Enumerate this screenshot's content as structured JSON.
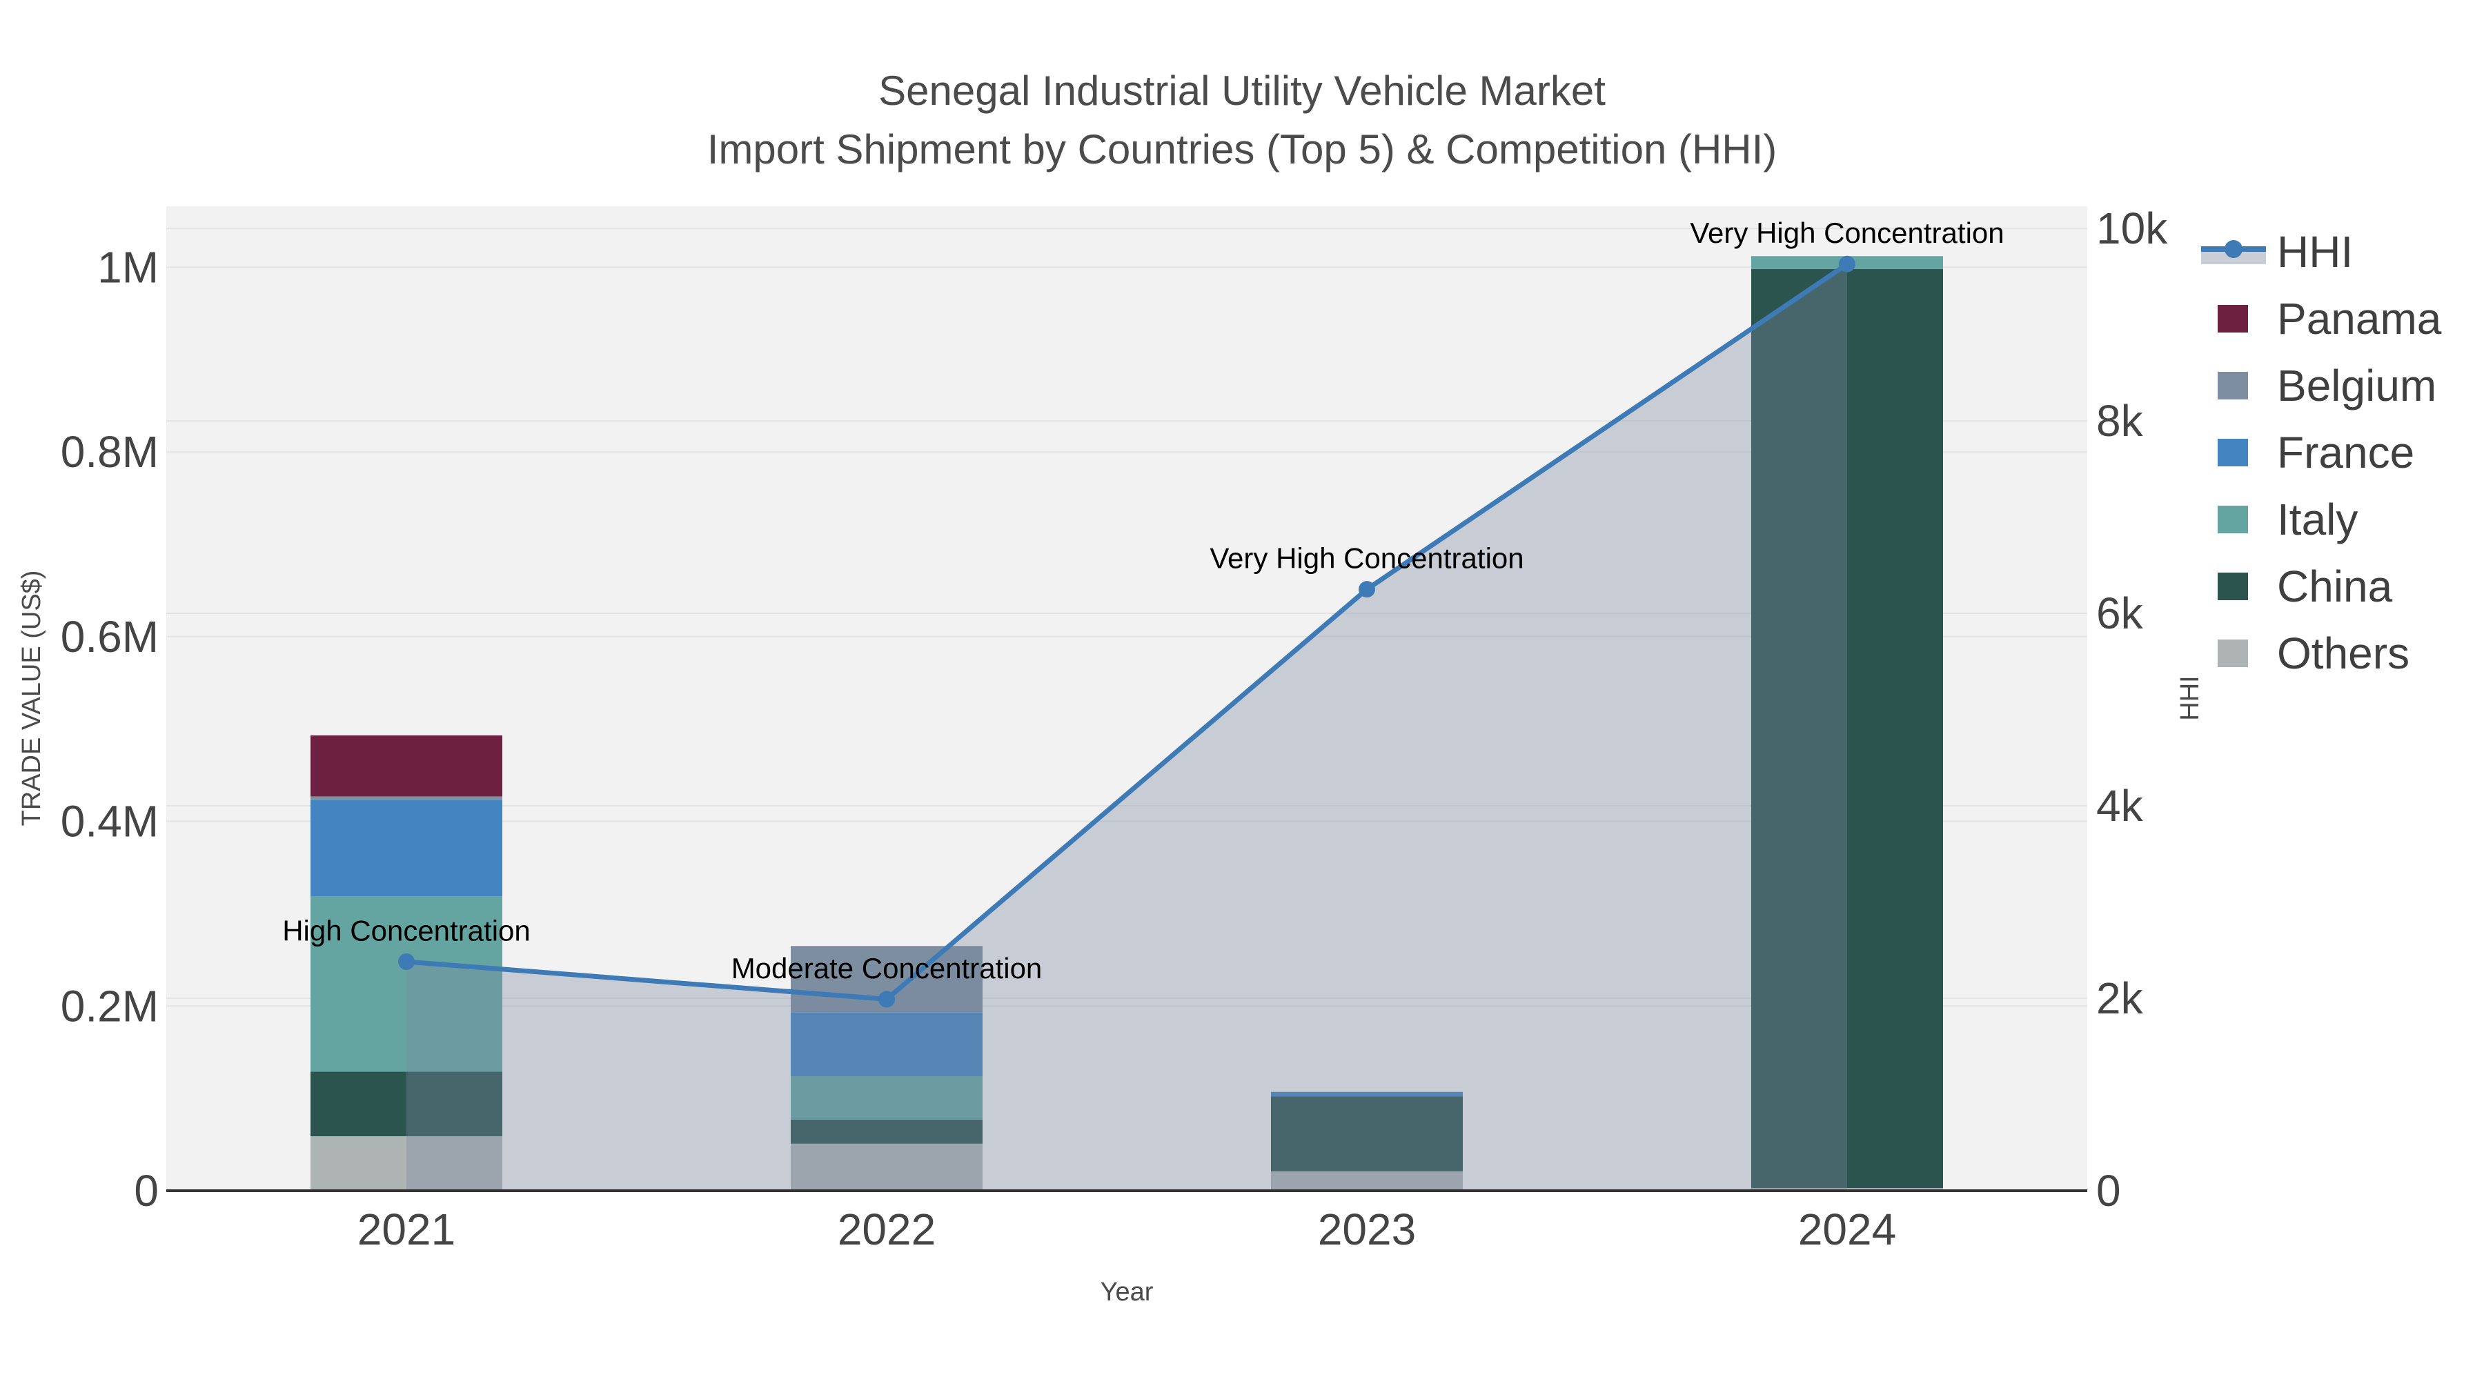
{
  "title": {
    "line1": "Senegal Industrial Utility Vehicle Market",
    "line2": "Import Shipment by Countries (Top 5) & Competition (HHI)"
  },
  "axes": {
    "x_title": "Year",
    "y_left_title": "TRADE VALUE (US$)",
    "y_right_title": "HHI",
    "x_ticks": [
      "2021",
      "2022",
      "2023",
      "2024"
    ],
    "y_left_ticks": [
      {
        "label": "0",
        "value": 0
      },
      {
        "label": "0.2M",
        "value": 200000
      },
      {
        "label": "0.4M",
        "value": 400000
      },
      {
        "label": "0.6M",
        "value": 600000
      },
      {
        "label": "0.8M",
        "value": 800000
      },
      {
        "label": "1M",
        "value": 1000000
      }
    ],
    "y_right_ticks": [
      {
        "label": "0",
        "value": 0
      },
      {
        "label": "2k",
        "value": 2000
      },
      {
        "label": "4k",
        "value": 4000
      },
      {
        "label": "6k",
        "value": 6000
      },
      {
        "label": "8k",
        "value": 8000
      },
      {
        "label": "10k",
        "value": 10000
      }
    ]
  },
  "colors": {
    "figure_bg": "#ffffff",
    "plot_bg": "#f2f2f2",
    "grid": "#e4e4e4",
    "axis_line": "#333333",
    "hhi_line": "#3e7bb6",
    "hhi_fill": "rgba(123,138,161,0.35)"
  },
  "chart_data": {
    "type": "bar+line",
    "title": "Senegal Industrial Utility Vehicle Market — Import Shipment by Countries (Top 5) & Competition (HHI)",
    "xlabel": "Year",
    "ylabel_left": "TRADE VALUE (US$)",
    "ylabel_right": "HHI",
    "categories": [
      "2021",
      "2022",
      "2023",
      "2024"
    ],
    "stacked": true,
    "grid": true,
    "legend_position": "right",
    "ylim_left": [
      0,
      1066000
    ],
    "ylim_right": [
      0,
      10230
    ],
    "series": [
      {
        "name": "Panama",
        "color": "#6e2040",
        "values": [
          66000,
          0,
          0,
          0
        ]
      },
      {
        "name": "Belgium",
        "color": "#7c8ea0",
        "values": [
          4000,
          72000,
          0,
          0
        ]
      },
      {
        "name": "France",
        "color": "#4385c1",
        "values": [
          104000,
          69000,
          5000,
          0
        ]
      },
      {
        "name": "Italy",
        "color": "#64a5a1",
        "values": [
          190000,
          47000,
          0,
          14000
        ]
      },
      {
        "name": "China",
        "color": "#2c544f",
        "values": [
          70000,
          26000,
          81000,
          995000
        ]
      },
      {
        "name": "Others",
        "color": "#aeb3b4",
        "values": [
          59000,
          51000,
          21000,
          3000
        ]
      }
    ],
    "line_series": {
      "name": "HHI",
      "axis": "right",
      "color": "#3e7bb6",
      "fill_color": "rgba(123,138,161,0.35)",
      "values": [
        2380,
        1990,
        6250,
        9630
      ]
    },
    "annotations": [
      {
        "category": "2021",
        "label": "High Concentration"
      },
      {
        "category": "2022",
        "label": "Moderate Concentration"
      },
      {
        "category": "2023",
        "label": "Very High Concentration"
      },
      {
        "category": "2024",
        "label": "Very High Concentration"
      }
    ]
  }
}
